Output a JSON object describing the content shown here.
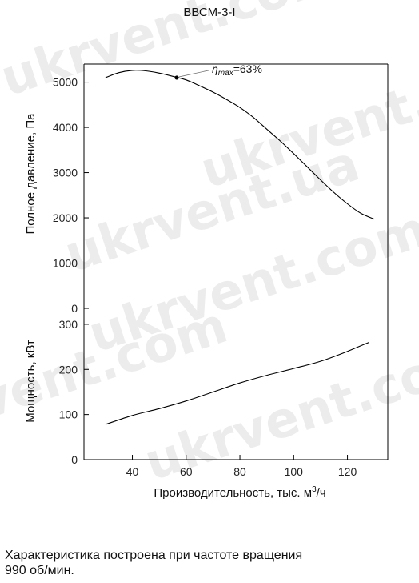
{
  "chart_data": [
    {
      "type": "line",
      "title": "ВВСМ-3-I",
      "ylabel": "Полное давление, Па",
      "xlim": [
        22,
        135
      ],
      "ylim": [
        0,
        5400
      ],
      "yticks": [
        0,
        1000,
        2000,
        3000,
        4000,
        5000
      ],
      "series": [
        {
          "x": [
            30,
            35,
            40,
            45,
            50,
            55,
            60,
            65,
            70,
            75,
            80,
            85,
            90,
            95,
            100,
            105,
            110,
            115,
            120,
            125,
            130
          ],
          "y": [
            5100,
            5210,
            5260,
            5250,
            5200,
            5130,
            5050,
            4920,
            4780,
            4620,
            4440,
            4220,
            3960,
            3700,
            3420,
            3130,
            2840,
            2560,
            2310,
            2100,
            1970
          ]
        }
      ],
      "max_point": {
        "x": 56.5,
        "y": 5100
      },
      "annotation": {
        "eta_symbol": "η",
        "eta_sub": "max",
        "eta_value": "=63%"
      }
    },
    {
      "type": "line",
      "ylabel": "Мощность, кВт",
      "xlabel": "Производительность, тыс. м",
      "xlabel_sup": "3",
      "xlabel_tail": "/ч",
      "xlim": [
        22,
        135
      ],
      "ylim": [
        0,
        330
      ],
      "xticks": [
        40,
        60,
        80,
        100,
        120
      ],
      "yticks": [
        0,
        100,
        200,
        300
      ],
      "series": [
        {
          "x": [
            30,
            40,
            50,
            60,
            70,
            80,
            90,
            100,
            110,
            120,
            128
          ],
          "y": [
            78,
            98,
            113,
            130,
            150,
            170,
            187,
            202,
            218,
            240,
            260
          ]
        }
      ]
    }
  ],
  "watermark": "ukrvent.com",
  "watermark_alt": "ukrvent.ua",
  "note_line1": "Характеристика построена при частоте вращения",
  "note_line2": "990 об/мин."
}
